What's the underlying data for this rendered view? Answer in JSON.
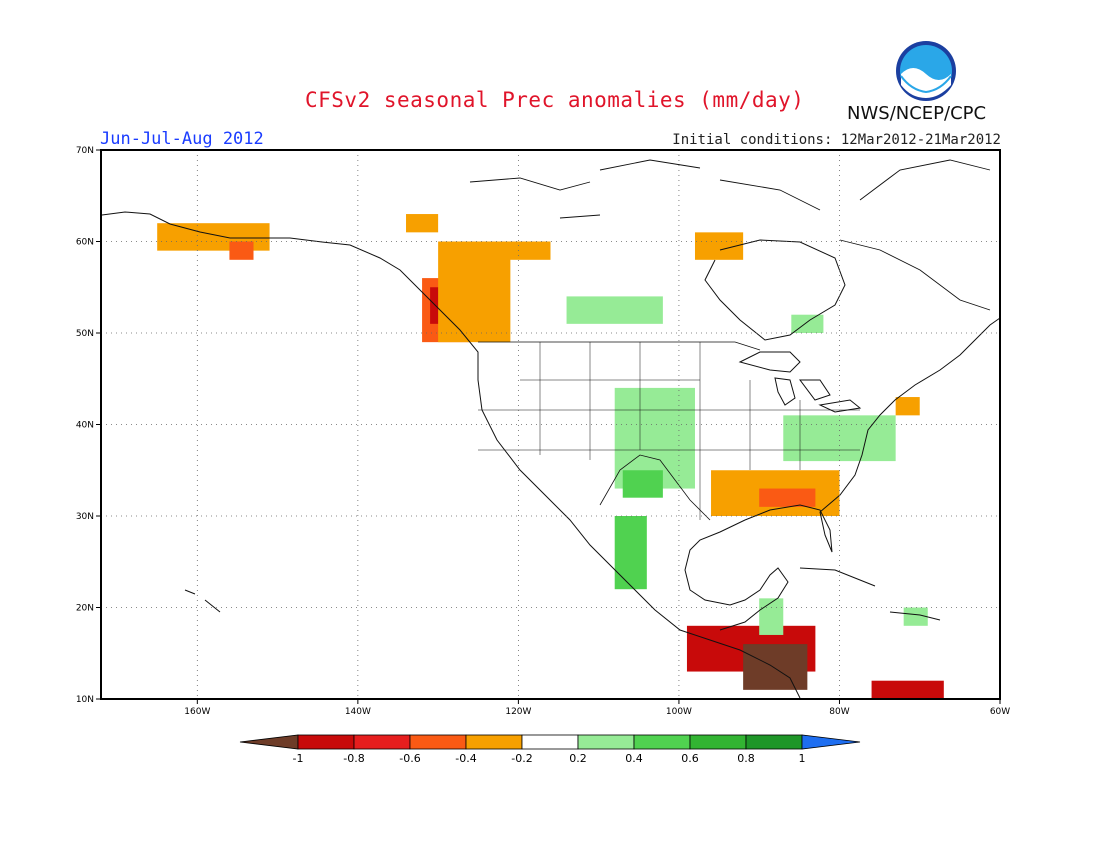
{
  "title": "CFSv2 seasonal Prec anomalies (mm/day)",
  "season": "Jun-Jul-Aug 2012",
  "initial_conditions": "Initial conditions: 12Mar2012-21Mar2012",
  "agency": "NWS/NCEP/CPC",
  "logo": {
    "text": "NOAA",
    "icon": "noaa-logo-icon"
  },
  "map": {
    "lon_range": [
      -172,
      -60
    ],
    "lat_range": [
      10,
      70
    ],
    "lon_ticks": [
      {
        "value": -160,
        "label": "160W"
      },
      {
        "value": -140,
        "label": "140W"
      },
      {
        "value": -120,
        "label": "120W"
      },
      {
        "value": -100,
        "label": "100W"
      },
      {
        "value": -80,
        "label": "80W"
      },
      {
        "value": -60,
        "label": "60W"
      }
    ],
    "lat_ticks": [
      {
        "value": 10,
        "label": "10N"
      },
      {
        "value": 20,
        "label": "20N"
      },
      {
        "value": 30,
        "label": "30N"
      },
      {
        "value": 40,
        "label": "40N"
      },
      {
        "value": 50,
        "label": "50N"
      },
      {
        "value": 60,
        "label": "60N"
      },
      {
        "value": 70,
        "label": "70N"
      }
    ],
    "grid": true,
    "anomaly_regions": [
      {
        "name": "alaska-south",
        "level": -0.3,
        "color": "#f7a000",
        "lon": [
          -165,
          -151
        ],
        "lat": [
          59,
          62
        ]
      },
      {
        "name": "alaska-peninsula",
        "level": -0.5,
        "color": "#fa5a14",
        "lon": [
          -156,
          -153
        ],
        "lat": [
          58,
          60
        ]
      },
      {
        "name": "bc-coast",
        "level": -0.5,
        "color": "#fa5a14",
        "lon": [
          -132,
          -126
        ],
        "lat": [
          49,
          56
        ]
      },
      {
        "name": "bc-coast-dry",
        "level": -0.7,
        "color": "#c80a0a",
        "lon": [
          -131,
          -128
        ],
        "lat": [
          51,
          55
        ]
      },
      {
        "name": "bc-interior",
        "level": -0.3,
        "color": "#f7a000",
        "lon": [
          -130,
          -121
        ],
        "lat": [
          49,
          60
        ]
      },
      {
        "name": "yukon",
        "level": -0.3,
        "color": "#f7a000",
        "lon": [
          -134,
          -130
        ],
        "lat": [
          61,
          63
        ]
      },
      {
        "name": "nw-territories",
        "level": -0.3,
        "color": "#f7a000",
        "lon": [
          -128,
          -116
        ],
        "lat": [
          58,
          60
        ]
      },
      {
        "name": "hudson-west",
        "level": -0.3,
        "color": "#f7a000",
        "lon": [
          -98,
          -92
        ],
        "lat": [
          58,
          61
        ]
      },
      {
        "name": "saskatchewan",
        "level": 0.3,
        "color": "#96eb96",
        "lon": [
          -114,
          -102
        ],
        "lat": [
          51,
          54
        ]
      },
      {
        "name": "ontario",
        "level": 0.3,
        "color": "#96eb96",
        "lon": [
          -86,
          -82
        ],
        "lat": [
          50,
          52
        ]
      },
      {
        "name": "great-plains",
        "level": 0.3,
        "color": "#96eb96",
        "lon": [
          -108,
          -98
        ],
        "lat": [
          33,
          44
        ]
      },
      {
        "name": "new-mexico",
        "level": 0.5,
        "color": "#50d250",
        "lon": [
          -107,
          -102
        ],
        "lat": [
          32,
          35
        ]
      },
      {
        "name": "mexico-west",
        "level": 0.5,
        "color": "#50d250",
        "lon": [
          -108,
          -104
        ],
        "lat": [
          22,
          30
        ]
      },
      {
        "name": "mid-atlantic",
        "level": 0.3,
        "color": "#96eb96",
        "lon": [
          -87,
          -73
        ],
        "lat": [
          36,
          41
        ]
      },
      {
        "name": "southeast",
        "level": -0.3,
        "color": "#f7a000",
        "lon": [
          -96,
          -80
        ],
        "lat": [
          30,
          35
        ]
      },
      {
        "name": "southeast-dry",
        "level": -0.5,
        "color": "#fa5a14",
        "lon": [
          -90,
          -83
        ],
        "lat": [
          31,
          33
        ]
      },
      {
        "name": "new-england",
        "level": -0.3,
        "color": "#f7a000",
        "lon": [
          -73,
          -70
        ],
        "lat": [
          41,
          43
        ]
      },
      {
        "name": "central-america",
        "level": -0.7,
        "color": "#c80a0a",
        "lon": [
          -99,
          -83
        ],
        "lat": [
          13,
          18
        ]
      },
      {
        "name": "central-america-strong",
        "level": -1.0,
        "color": "#6e3c28",
        "lon": [
          -92,
          -84
        ],
        "lat": [
          11,
          16
        ]
      },
      {
        "name": "caribbean-south",
        "level": -0.7,
        "color": "#c80a0a",
        "lon": [
          -76,
          -67
        ],
        "lat": [
          10,
          12
        ]
      },
      {
        "name": "yucatan",
        "level": 0.3,
        "color": "#96eb96",
        "lon": [
          -90,
          -87
        ],
        "lat": [
          17,
          21
        ]
      },
      {
        "name": "hispaniola",
        "level": 0.3,
        "color": "#96eb96",
        "lon": [
          -72,
          -69
        ],
        "lat": [
          18,
          20
        ]
      }
    ]
  },
  "colorbar": {
    "labels": [
      "-1",
      "-0.8",
      "-0.6",
      "-0.4",
      "-0.2",
      "0.2",
      "0.4",
      "0.6",
      "0.8",
      "1"
    ],
    "colors": [
      "#6e3c28",
      "#c80a0a",
      "#e61e1e",
      "#fa5a14",
      "#f7a000",
      "#ffffff",
      "#96eb96",
      "#50d250",
      "#32b432",
      "#1e9628",
      "#1e6ef0"
    ]
  }
}
